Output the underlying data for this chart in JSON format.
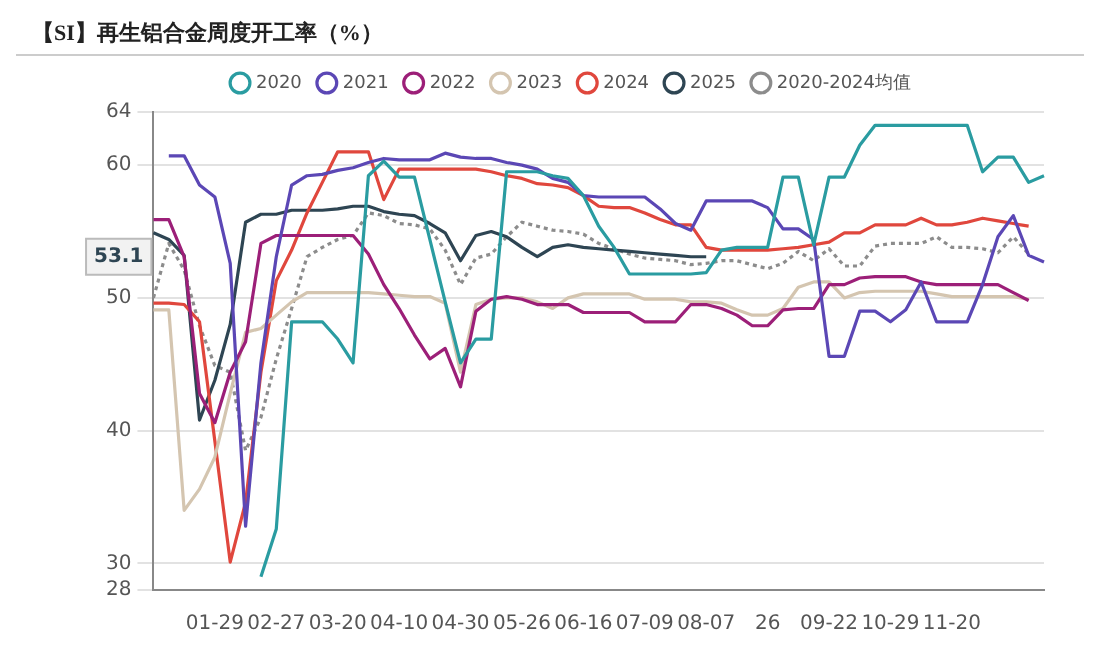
{
  "chart_data": {
    "type": "line",
    "title": "【SI】再生铝合金周度开工率（%）",
    "categories": [
      null,
      null,
      null,
      null,
      "01-29",
      null,
      null,
      null,
      "02-27",
      null,
      null,
      null,
      "03-20",
      null,
      null,
      null,
      "04-10",
      null,
      null,
      null,
      "04-30",
      null,
      null,
      null,
      "05-26",
      null,
      null,
      null,
      "06-16",
      null,
      null,
      null,
      "07-09",
      null,
      null,
      null,
      "08-07",
      null,
      null,
      null,
      "26",
      null,
      null,
      null,
      "09-22",
      null,
      null,
      null,
      "10-29",
      null,
      null,
      null,
      "11-20",
      null,
      null,
      null,
      null,
      null,
      null
    ],
    "series": [
      {
        "name": "2020",
        "color": "#2a9ca1",
        "values": [
          null,
          null,
          null,
          null,
          null,
          null,
          null,
          29,
          32.6,
          48.2,
          48.2,
          48.2,
          46.9,
          45.1,
          59.2,
          60.3,
          59.1,
          59.1,
          54.4,
          49.7,
          45.1,
          46.9,
          46.9,
          59.5,
          59.5,
          59.5,
          59.2,
          59,
          57.7,
          55.4,
          53.8,
          51.8,
          51.8,
          51.8,
          51.8,
          51.8,
          51.9,
          53.6,
          53.8,
          53.8,
          53.8,
          59.1,
          59.1,
          54,
          59.1,
          59.1,
          61.5,
          63,
          63,
          63,
          63,
          63,
          63,
          63,
          59.5,
          60.6,
          60.6,
          58.7,
          59.2
        ]
      },
      {
        "name": "2021",
        "color": "#5b47b5",
        "values": [
          null,
          60.7,
          60.7,
          58.5,
          57.6,
          52.6,
          32.8,
          45.1,
          53.1,
          58.5,
          59.2,
          59.3,
          59.6,
          59.8,
          60.2,
          60.5,
          60.4,
          60.4,
          60.4,
          60.9,
          60.6,
          60.5,
          60.5,
          60.2,
          60,
          59.7,
          59,
          58.7,
          57.7,
          57.6,
          57.6,
          57.6,
          57.6,
          56.7,
          55.6,
          55.1,
          57.3,
          57.3,
          57.3,
          57.3,
          56.8,
          55.2,
          55.2,
          54.4,
          45.6,
          45.6,
          49,
          49,
          48.2,
          49.1,
          51.2,
          48.2,
          48.2,
          48.2,
          51,
          54.6,
          56.2,
          53.2,
          52.7
        ]
      },
      {
        "name": "2022",
        "color": "#9c1f78",
        "values": [
          55.9,
          55.9,
          53.1,
          42.8,
          40.6,
          44.4,
          46.7,
          54.1,
          54.7,
          54.7,
          54.7,
          54.7,
          54.7,
          54.7,
          53.3,
          51,
          49.2,
          47.2,
          45.4,
          46.2,
          43.3,
          49,
          49.9,
          50.1,
          49.9,
          49.5,
          49.5,
          49.5,
          48.9,
          48.9,
          48.9,
          48.9,
          48.2,
          48.2,
          48.2,
          49.5,
          49.5,
          49.2,
          48.7,
          47.9,
          47.9,
          49.1,
          49.2,
          49.2,
          51,
          51,
          51.5,
          51.6,
          51.6,
          51.6,
          51.2,
          51,
          51,
          51,
          51,
          51,
          50.4,
          49.8,
          null
        ]
      },
      {
        "name": "2023",
        "color": "#d4c5b0",
        "values": [
          49.1,
          49.1,
          34,
          35.6,
          38,
          42.8,
          47.4,
          47.7,
          48.7,
          49.7,
          50.4,
          50.4,
          50.4,
          50.4,
          50.4,
          50.3,
          50.2,
          50.1,
          50.1,
          49.6,
          44.4,
          49.5,
          49.9,
          50,
          50,
          49.7,
          49.2,
          50,
          50.3,
          50.3,
          50.3,
          50.3,
          49.9,
          49.9,
          49.9,
          49.7,
          49.7,
          49.6,
          49.1,
          48.7,
          48.7,
          49.2,
          50.8,
          51.2,
          51.2,
          50,
          50.4,
          50.5,
          50.5,
          50.5,
          50.5,
          50.3,
          50.1,
          50.1,
          50.1,
          50.1,
          50.1,
          49.9,
          null
        ]
      },
      {
        "name": "2024",
        "color": "#e0473d",
        "values": [
          49.6,
          49.6,
          49.5,
          48.2,
          39.2,
          30.1,
          34.6,
          44.4,
          51.3,
          53.6,
          56.4,
          58.7,
          61,
          61,
          61,
          57.4,
          59.7,
          59.7,
          59.7,
          59.7,
          59.7,
          59.7,
          59.5,
          59.2,
          59,
          58.6,
          58.5,
          58.3,
          57.7,
          56.9,
          56.8,
          56.8,
          56.4,
          55.9,
          55.5,
          55.5,
          53.8,
          53.6,
          53.6,
          53.6,
          53.6,
          53.7,
          53.8,
          54,
          54.2,
          54.9,
          54.9,
          55.5,
          55.5,
          55.5,
          56,
          55.5,
          55.5,
          55.7,
          56,
          55.8,
          55.6,
          55.4,
          null
        ]
      },
      {
        "name": "2025",
        "color": "#2e4553",
        "values": [
          54.9,
          54.4,
          53.2,
          40.8,
          43.8,
          48,
          55.7,
          56.3,
          56.3,
          56.6,
          56.6,
          56.6,
          56.7,
          56.9,
          56.9,
          56.5,
          56.3,
          56.2,
          55.6,
          54.9,
          52.8,
          54.7,
          55,
          54.6,
          53.8,
          53.1,
          53.8,
          54,
          53.8,
          53.7,
          53.6,
          53.5,
          53.4,
          53.3,
          53.2,
          53.1,
          53.1,
          null,
          null,
          null,
          null,
          null,
          null,
          null,
          null,
          null,
          null,
          null,
          null,
          null,
          null,
          null,
          null,
          null,
          null,
          null,
          null,
          null,
          null
        ]
      },
      {
        "name": "2020-2024均值",
        "color": "#8c8c8c",
        "line_style": "dotted",
        "values": [
          50,
          54.1,
          52.1,
          47.9,
          44.9,
          44.4,
          38.5,
          41,
          45.4,
          49.2,
          53.1,
          53.8,
          54.4,
          54.7,
          56.4,
          56.2,
          55.6,
          55.5,
          55.2,
          53.6,
          51,
          53,
          53.3,
          54.6,
          55.7,
          55.4,
          55.1,
          55,
          54.8,
          54.1,
          53.7,
          53.3,
          53,
          52.9,
          52.8,
          52.5,
          52.6,
          52.8,
          52.8,
          52.5,
          52.2,
          52.6,
          53.5,
          52.8,
          53.7,
          52.4,
          52.4,
          53.9,
          54.1,
          54.1,
          54.1,
          54.6,
          53.8,
          53.8,
          53.7,
          53.4,
          54.6,
          53.3,
          null
        ]
      }
    ],
    "ylim": [
      28,
      64
    ],
    "yticks": [
      28,
      30,
      40,
      50,
      60,
      64
    ],
    "grid": "y",
    "legend": "top",
    "marker": "none",
    "line_style": "solid",
    "annotations": [
      {
        "text": "53.1",
        "y": 53.1
      }
    ]
  }
}
